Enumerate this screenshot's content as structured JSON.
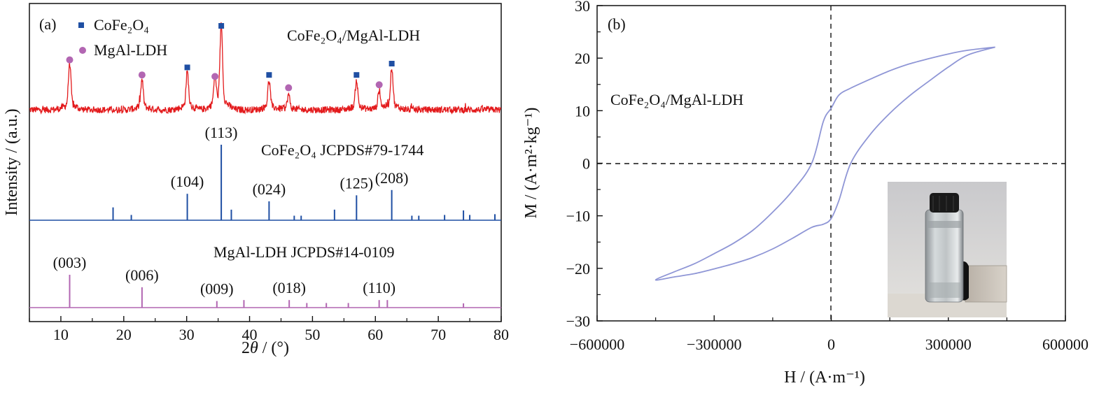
{
  "chart_data": [
    {
      "panel_label": "(a)",
      "type": "line",
      "xlabel_html": [
        "2",
        "θ",
        " / (°)"
      ],
      "ylabel": "Intensity / (a.u.)",
      "xlim": [
        5,
        80
      ],
      "xticks": [
        10,
        20,
        30,
        40,
        50,
        60,
        70,
        80
      ],
      "legend": [
        {
          "name": "CoFe₂O₄",
          "marker": "square",
          "color": "#1f4fa3"
        },
        {
          "name": "MgAl-LDH",
          "marker": "circle",
          "color": "#b266b2"
        }
      ],
      "series": [
        {
          "name": "CoFe₂O₄/MgAl-LDH",
          "color": "#e31a1c",
          "style": "noisy-pattern",
          "peaks": [
            {
              "x": 11.4,
              "height": 0.55,
              "phase": "MgAl-LDH"
            },
            {
              "x": 22.9,
              "height": 0.35,
              "phase": "MgAl-LDH"
            },
            {
              "x": 30.1,
              "height": 0.45,
              "phase": "CoFe₂O₄"
            },
            {
              "x": 34.5,
              "height": 0.33,
              "phase": "MgAl-LDH"
            },
            {
              "x": 35.5,
              "height": 1.0,
              "phase": "CoFe₂O₄"
            },
            {
              "x": 43.1,
              "height": 0.35,
              "phase": "CoFe₂O₄"
            },
            {
              "x": 46.2,
              "height": 0.18,
              "phase": "MgAl-LDH"
            },
            {
              "x": 57.0,
              "height": 0.35,
              "phase": "CoFe₂O₄"
            },
            {
              "x": 60.6,
              "height": 0.22,
              "phase": "MgAl-LDH"
            },
            {
              "x": 62.6,
              "height": 0.5,
              "phase": "CoFe₂O₄"
            }
          ]
        },
        {
          "name": "CoFe₂O₄ JCPDS#79-1744",
          "color": "#1f4fa3",
          "style": "sticks",
          "sticks": [
            {
              "x": 18.3,
              "height": 0.17
            },
            {
              "x": 21.2,
              "height": 0.07
            },
            {
              "x": 30.1,
              "height": 0.35,
              "label": "(104)"
            },
            {
              "x": 35.5,
              "height": 1.0,
              "label": "(113)"
            },
            {
              "x": 37.1,
              "height": 0.14
            },
            {
              "x": 43.1,
              "height": 0.25,
              "label": "(024)"
            },
            {
              "x": 47.1,
              "height": 0.06
            },
            {
              "x": 48.2,
              "height": 0.06
            },
            {
              "x": 53.5,
              "height": 0.14
            },
            {
              "x": 57.0,
              "height": 0.33,
              "label": "(125)"
            },
            {
              "x": 62.6,
              "height": 0.4,
              "label": "(208)"
            },
            {
              "x": 65.8,
              "height": 0.06
            },
            {
              "x": 66.9,
              "height": 0.06
            },
            {
              "x": 71.0,
              "height": 0.07
            },
            {
              "x": 74.0,
              "height": 0.13
            },
            {
              "x": 75.0,
              "height": 0.07
            },
            {
              "x": 79.0,
              "height": 0.08
            }
          ]
        },
        {
          "name": "MgAl-LDH JCPDS#14-0109",
          "color": "#b266b2",
          "style": "sticks",
          "sticks": [
            {
              "x": 11.4,
              "height": 1.0,
              "label": "(003)"
            },
            {
              "x": 22.9,
              "height": 0.62,
              "label": "(006)"
            },
            {
              "x": 34.8,
              "height": 0.2,
              "label": "(009)"
            },
            {
              "x": 39.1,
              "height": 0.23
            },
            {
              "x": 46.3,
              "height": 0.23,
              "label": "(018)"
            },
            {
              "x": 49.1,
              "height": 0.14
            },
            {
              "x": 52.2,
              "height": 0.14
            },
            {
              "x": 55.7,
              "height": 0.14
            },
            {
              "x": 60.6,
              "height": 0.23,
              "label": "(110)"
            },
            {
              "x": 61.9,
              "height": 0.23
            },
            {
              "x": 74.0,
              "height": 0.13
            }
          ]
        }
      ]
    },
    {
      "panel_label": "(b)",
      "type": "line",
      "xlabel": "H / (A·m⁻¹)",
      "ylabel": "M / (A·m²·kg⁻¹)",
      "xlim": [
        -600000,
        600000
      ],
      "ylim": [
        -30,
        30
      ],
      "xticks": [
        -600000,
        -300000,
        0,
        300000,
        600000
      ],
      "xtick_labels": [
        "−600000",
        "−300000",
        "0",
        "300000",
        "600000"
      ],
      "yticks": [
        -30,
        -20,
        -10,
        0,
        10,
        20,
        30
      ],
      "ytick_labels": [
        "−30",
        "−20",
        "−10",
        "0",
        "10",
        "20",
        "30"
      ],
      "annotation": "CoFe₂O₄/MgAl-LDH",
      "inset": "photo of vial with magnet",
      "series": [
        {
          "name": "hysteresis loop",
          "color": "#8f96d6",
          "x": [
            420000,
            350000,
            300000,
            250000,
            200000,
            150000,
            100000,
            50000,
            20000,
            0,
            -20000,
            -50000,
            -100000,
            -150000,
            -200000,
            -250000,
            -300000,
            -350000,
            -400000,
            -450000,
            -400000,
            -350000,
            -300000,
            -250000,
            -200000,
            -150000,
            -100000,
            -50000,
            -20000,
            0,
            20000,
            50000,
            100000,
            150000,
            200000,
            250000,
            300000,
            350000,
            420000
          ],
          "y": [
            22.1,
            21.5,
            20.8,
            19.9,
            18.9,
            17.6,
            16.0,
            14.3,
            13.0,
            10.5,
            8.0,
            0.0,
            -5.3,
            -9.3,
            -12.7,
            -15.2,
            -17.2,
            -19.1,
            -20.6,
            -22.2,
            -21.6,
            -21.0,
            -20.1,
            -19.1,
            -17.9,
            -16.3,
            -14.3,
            -12.2,
            -11.6,
            -10.5,
            -7.0,
            0.0,
            5.5,
            9.5,
            12.8,
            15.6,
            18.3,
            20.6,
            22.1
          ]
        }
      ]
    }
  ]
}
